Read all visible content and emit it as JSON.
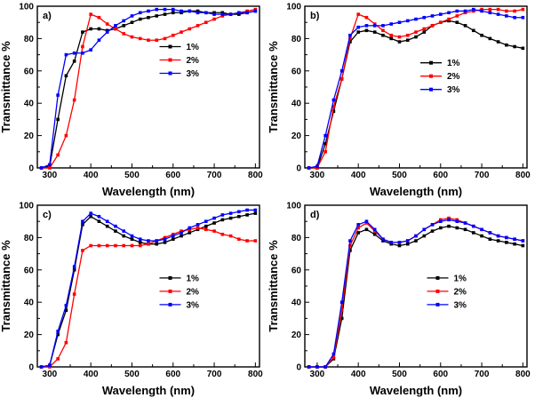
{
  "figure": {
    "xlabel": "Wavelength (nm)",
    "ylabel": "Transmittance %",
    "colors": {
      "s1": "#000000",
      "s2": "#ff0000",
      "s3": "#0000ff"
    }
  },
  "chart_data": [
    {
      "type": "line",
      "panel_label": "a)",
      "xlabel": "Wavelength (nm)",
      "ylabel": "Transmittance %",
      "xlim": [
        270,
        810
      ],
      "ylim": [
        0,
        100
      ],
      "x_ticks": [
        300,
        400,
        500,
        600,
        700,
        800
      ],
      "y_ticks": [
        0,
        20,
        40,
        60,
        80,
        100
      ],
      "legend_pos": {
        "x": 0.55,
        "y": 0.25
      },
      "x": [
        280,
        300,
        320,
        340,
        360,
        380,
        400,
        420,
        440,
        460,
        480,
        500,
        520,
        540,
        560,
        580,
        600,
        620,
        640,
        660,
        680,
        700,
        720,
        740,
        760,
        780,
        800
      ],
      "series": [
        {
          "name": "1%",
          "color": "#000000",
          "values": [
            0,
            1,
            30,
            57,
            66,
            84,
            86,
            86,
            85,
            86,
            88,
            90,
            92,
            93,
            94,
            95,
            96,
            96,
            97,
            97,
            96,
            96,
            96,
            95,
            95,
            96,
            97
          ]
        },
        {
          "name": "2%",
          "color": "#ff0000",
          "values": [
            0,
            0,
            8,
            20,
            42,
            75,
            95,
            93,
            89,
            86,
            83,
            81,
            80,
            79,
            79,
            80,
            82,
            84,
            86,
            88,
            90,
            92,
            94,
            95,
            96,
            97,
            98
          ]
        },
        {
          "name": "3%",
          "color": "#0000ff",
          "values": [
            0,
            2,
            45,
            70,
            71,
            71,
            73,
            79,
            84,
            88,
            91,
            94,
            96,
            97,
            98,
            98,
            98,
            97,
            97,
            96,
            96,
            95,
            95,
            95,
            96,
            96,
            97
          ]
        }
      ]
    },
    {
      "type": "line",
      "panel_label": "b)",
      "xlabel": "Wavelength (nm)",
      "ylabel": "Transmittance %",
      "xlim": [
        270,
        810
      ],
      "ylim": [
        0,
        100
      ],
      "x_ticks": [
        300,
        400,
        500,
        600,
        700,
        800
      ],
      "y_ticks": [
        0,
        20,
        40,
        60,
        80,
        100
      ],
      "legend_pos": {
        "x": 0.52,
        "y": 0.35
      },
      "x": [
        280,
        300,
        320,
        340,
        360,
        380,
        400,
        420,
        440,
        460,
        480,
        500,
        520,
        540,
        560,
        580,
        600,
        620,
        640,
        660,
        680,
        700,
        720,
        740,
        760,
        780,
        800
      ],
      "series": [
        {
          "name": "1%",
          "color": "#000000",
          "values": [
            0,
            0,
            15,
            35,
            55,
            78,
            84,
            85,
            84,
            82,
            80,
            78,
            79,
            81,
            84,
            88,
            90,
            91,
            90,
            88,
            85,
            82,
            80,
            78,
            76,
            75,
            74
          ]
        },
        {
          "name": "2%",
          "color": "#ff0000",
          "values": [
            0,
            0,
            10,
            38,
            55,
            80,
            95,
            93,
            89,
            85,
            82,
            81,
            82,
            84,
            86,
            88,
            90,
            92,
            94,
            96,
            97,
            98,
            98,
            98,
            97,
            97,
            98
          ]
        },
        {
          "name": "3%",
          "color": "#0000ff",
          "values": [
            0,
            1,
            20,
            42,
            60,
            82,
            87,
            88,
            88,
            88,
            89,
            90,
            91,
            92,
            93,
            94,
            95,
            96,
            97,
            97,
            98,
            97,
            96,
            95,
            94,
            93,
            93
          ]
        }
      ]
    },
    {
      "type": "line",
      "panel_label": "c)",
      "xlabel": "Wavelength (nm)",
      "ylabel": "Transmittance %",
      "xlim": [
        270,
        810
      ],
      "ylim": [
        0,
        100
      ],
      "x_ticks": [
        300,
        400,
        500,
        600,
        700,
        800
      ],
      "y_ticks": [
        0,
        20,
        40,
        60,
        80,
        100
      ],
      "legend_pos": {
        "x": 0.55,
        "y": 0.45
      },
      "x": [
        280,
        300,
        320,
        340,
        360,
        380,
        400,
        420,
        440,
        460,
        480,
        500,
        520,
        540,
        560,
        580,
        600,
        620,
        640,
        660,
        680,
        700,
        720,
        740,
        760,
        780,
        800
      ],
      "series": [
        {
          "name": "1%",
          "color": "#000000",
          "values": [
            0,
            1,
            20,
            35,
            60,
            88,
            93,
            90,
            87,
            84,
            81,
            79,
            77,
            76,
            76,
            77,
            79,
            81,
            83,
            85,
            87,
            89,
            91,
            92,
            93,
            94,
            95
          ]
        },
        {
          "name": "2%",
          "color": "#ff0000",
          "values": [
            0,
            0,
            5,
            15,
            45,
            72,
            75,
            75,
            75,
            75,
            75,
            75,
            75,
            76,
            78,
            80,
            82,
            84,
            85,
            86,
            85,
            84,
            82,
            81,
            79,
            78,
            78
          ]
        },
        {
          "name": "3%",
          "color": "#0000ff",
          "values": [
            0,
            1,
            22,
            38,
            62,
            90,
            95,
            93,
            90,
            87,
            84,
            81,
            79,
            78,
            78,
            79,
            81,
            83,
            86,
            88,
            90,
            92,
            94,
            95,
            96,
            97,
            97
          ]
        }
      ]
    },
    {
      "type": "line",
      "panel_label": "d)",
      "xlabel": "Wavelength (nm)",
      "ylabel": "Transmittance %",
      "xlim": [
        270,
        810
      ],
      "ylim": [
        0,
        100
      ],
      "x_ticks": [
        300,
        400,
        500,
        600,
        700,
        800
      ],
      "y_ticks": [
        0,
        20,
        40,
        60,
        80,
        100
      ],
      "legend_pos": {
        "x": 0.55,
        "y": 0.45
      },
      "x": [
        280,
        300,
        320,
        340,
        360,
        380,
        400,
        420,
        440,
        460,
        480,
        500,
        520,
        540,
        560,
        580,
        600,
        620,
        640,
        660,
        680,
        700,
        720,
        740,
        760,
        780,
        800
      ],
      "series": [
        {
          "name": "1%",
          "color": "#000000",
          "values": [
            0,
            0,
            0,
            5,
            30,
            72,
            83,
            85,
            82,
            78,
            76,
            75,
            76,
            78,
            81,
            84,
            86,
            87,
            86,
            85,
            83,
            81,
            79,
            78,
            77,
            76,
            75
          ]
        },
        {
          "name": "2%",
          "color": "#ff0000",
          "values": [
            0,
            0,
            0,
            6,
            35,
            75,
            86,
            89,
            84,
            79,
            77,
            77,
            78,
            81,
            85,
            88,
            91,
            92,
            91,
            89,
            87,
            85,
            83,
            81,
            80,
            79,
            78
          ]
        },
        {
          "name": "3%",
          "color": "#0000ff",
          "values": [
            0,
            0,
            0,
            8,
            40,
            78,
            88,
            90,
            85,
            79,
            77,
            77,
            78,
            81,
            85,
            88,
            90,
            91,
            90,
            89,
            87,
            85,
            83,
            81,
            80,
            79,
            78
          ]
        }
      ]
    }
  ]
}
